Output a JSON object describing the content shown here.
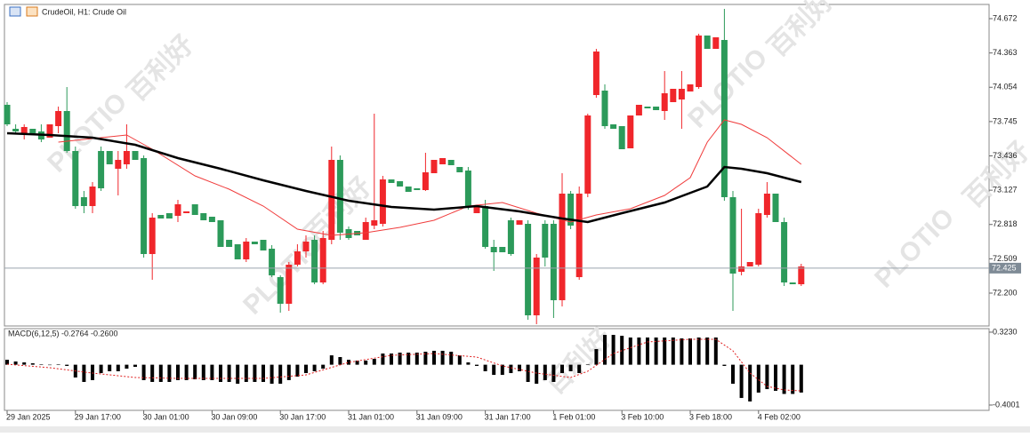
{
  "chart_data": [
    {
      "type": "candlestick",
      "title": "CrudeOil, H1: Crude Oil",
      "up_color": "#f0262b",
      "down_color": "#2c9a5a",
      "categories": [
        "29 Jan 2025",
        null,
        null,
        null,
        null,
        null,
        null,
        null,
        "29 Jan 17:00",
        null,
        null,
        null,
        null,
        null,
        null,
        null,
        "30 Jan 01:00",
        null,
        null,
        null,
        null,
        null,
        null,
        null,
        "30 Jan 09:00",
        null,
        null,
        null,
        null,
        null,
        null,
        null,
        "30 Jan 17:00",
        null,
        null,
        null,
        null,
        null,
        null,
        null,
        "31 Jan 01:00",
        null,
        null,
        null,
        null,
        null,
        null,
        null,
        "31 Jan 09:00",
        null,
        null,
        null,
        null,
        null,
        null,
        null,
        "31 Jan 17:00",
        null,
        null,
        null,
        null,
        null,
        null,
        null,
        "1 Feb 01:00",
        null,
        null,
        null,
        null,
        null,
        null,
        null,
        "3 Feb 10:00",
        null,
        null,
        null,
        null,
        null,
        null,
        null,
        "3 Feb 18:00",
        null,
        null,
        null,
        null,
        null,
        null,
        null,
        "4 Feb 02:00",
        null,
        null,
        null,
        null,
        null
      ],
      "ohlc": [
        [
          73.896,
          73.92,
          73.704,
          73.72
        ],
        [
          73.68,
          73.72,
          73.64,
          73.656
        ],
        [
          73.64,
          73.72,
          73.584,
          73.696
        ],
        [
          73.68,
          73.68,
          73.64,
          73.64
        ],
        [
          73.656,
          73.72,
          73.56,
          73.584
        ],
        [
          73.6,
          73.72,
          73.6,
          73.72
        ],
        [
          73.704,
          73.88,
          73.64,
          73.84
        ],
        [
          73.84,
          74.056,
          73.464,
          73.48
        ],
        [
          73.48,
          73.52,
          72.96,
          72.984
        ],
        [
          73.064,
          73.12,
          72.92,
          72.984
        ],
        [
          72.984,
          73.2,
          72.92,
          73.16
        ],
        [
          73.48,
          73.52,
          73.12,
          73.144
        ],
        [
          73.48,
          73.48,
          73.36,
          73.36
        ],
        [
          73.32,
          73.48,
          73.08,
          73.4
        ],
        [
          73.36,
          73.72,
          73.32,
          73.48
        ],
        [
          73.48,
          73.48,
          73.4,
          73.4
        ],
        [
          73.416,
          73.44,
          72.52,
          72.552
        ],
        [
          72.552,
          72.92,
          72.32,
          72.88
        ],
        [
          72.904,
          72.904,
          72.872,
          72.872
        ],
        [
          72.92,
          72.92,
          72.872,
          72.872
        ],
        [
          72.896,
          73.04,
          72.84,
          73.0
        ],
        [
          72.92,
          72.936,
          72.92,
          72.936
        ],
        [
          73.0,
          73.0,
          72.904,
          72.904
        ],
        [
          72.92,
          72.92,
          72.856,
          72.856
        ],
        [
          72.888,
          72.888,
          72.84,
          72.84
        ],
        [
          72.856,
          72.856,
          72.616,
          72.616
        ],
        [
          72.68,
          72.68,
          72.616,
          72.616
        ],
        [
          72.64,
          72.64,
          72.504,
          72.504
        ],
        [
          72.504,
          72.696,
          72.48,
          72.664
        ],
        [
          72.664,
          72.664,
          72.64,
          72.64
        ],
        [
          72.68,
          72.68,
          72.584,
          72.584
        ],
        [
          72.6,
          72.632,
          72.344,
          72.36
        ],
        [
          72.344,
          72.36,
          72.024,
          72.104
        ],
        [
          72.104,
          72.48,
          72.04,
          72.456
        ],
        [
          72.456,
          72.64,
          72.44,
          72.576
        ],
        [
          72.576,
          72.72,
          72.52,
          72.664
        ],
        [
          72.68,
          72.72,
          72.28,
          72.296
        ],
        [
          72.296,
          72.76,
          72.28,
          72.696
        ],
        [
          72.68,
          73.52,
          72.64,
          73.4
        ],
        [
          73.4,
          73.44,
          72.68,
          72.744
        ],
        [
          72.776,
          72.8,
          72.68,
          72.696
        ],
        [
          72.76,
          72.76,
          72.72,
          72.72
        ],
        [
          72.68,
          72.88,
          72.68,
          72.84
        ],
        [
          72.808,
          73.816,
          72.776,
          72.856
        ],
        [
          72.824,
          73.256,
          72.8,
          73.224
        ],
        [
          73.224,
          73.224,
          73.192,
          73.192
        ],
        [
          73.208,
          73.208,
          73.16,
          73.16
        ],
        [
          73.16,
          73.16,
          73.112,
          73.112
        ],
        [
          73.144,
          73.144,
          73.128,
          73.128
        ],
        [
          73.128,
          73.464,
          73.12,
          73.288
        ],
        [
          73.28,
          73.4,
          73.28,
          73.4
        ],
        [
          73.36,
          73.416,
          73.36,
          73.416
        ],
        [
          73.4,
          73.4,
          73.352,
          73.352
        ],
        [
          73.336,
          73.336,
          73.288,
          73.288
        ],
        [
          73.304,
          73.336,
          72.952,
          72.984
        ],
        [
          72.92,
          72.984,
          72.92,
          72.984
        ],
        [
          72.984,
          73.04,
          72.6,
          72.616
        ],
        [
          72.616,
          72.68,
          72.4,
          72.568
        ],
        [
          72.616,
          72.616,
          72.568,
          72.568
        ],
        [
          72.856,
          72.88,
          72.536,
          72.552
        ],
        [
          72.816,
          72.856,
          72.816,
          72.856
        ],
        [
          72.824,
          72.856,
          71.96,
          72.0
        ],
        [
          72.0,
          72.552,
          71.92,
          72.52
        ],
        [
          72.824,
          72.856,
          72.44,
          72.52
        ],
        [
          72.824,
          72.856,
          71.976,
          72.136
        ],
        [
          72.136,
          73.28,
          72.08,
          73.096
        ],
        [
          73.096,
          73.12,
          72.776,
          72.808
        ],
        [
          72.344,
          73.16,
          72.32,
          73.096
        ],
        [
          73.096,
          73.816,
          73.064,
          73.8
        ],
        [
          73.984,
          74.4,
          73.96,
          74.376
        ],
        [
          74.024,
          74.08,
          73.68,
          73.704
        ],
        [
          73.72,
          73.72,
          73.68,
          73.68
        ],
        [
          73.704,
          73.704,
          73.496,
          73.496
        ],
        [
          73.504,
          73.8,
          73.504,
          73.8
        ],
        [
          73.8,
          73.896,
          73.8,
          73.896
        ],
        [
          73.88,
          73.88,
          73.864,
          73.864
        ],
        [
          73.88,
          73.88,
          73.848,
          73.848
        ],
        [
          73.84,
          74.2,
          73.76,
          74.0
        ],
        [
          73.92,
          74.04,
          73.92,
          74.04
        ],
        [
          73.944,
          74.2,
          73.68,
          74.04
        ],
        [
          74.016,
          74.08,
          74.016,
          74.08
        ],
        [
          74.056,
          74.536,
          74.04,
          74.52
        ],
        [
          74.52,
          74.52,
          74.4,
          74.4
        ],
        [
          74.4,
          74.504,
          74.4,
          74.504
        ],
        [
          74.48,
          74.76,
          73.032,
          73.064
        ],
        [
          73.064,
          73.12,
          72.04,
          72.376
        ],
        [
          72.392,
          72.96,
          72.36,
          72.44
        ],
        [
          72.44,
          72.48,
          72.44,
          72.48
        ],
        [
          72.456,
          72.96,
          72.44,
          72.92
        ],
        [
          72.904,
          73.2,
          72.88,
          73.096
        ],
        [
          73.096,
          73.096,
          72.84,
          72.84
        ],
        [
          72.84,
          72.88,
          72.264,
          72.296
        ],
        [
          72.296,
          72.296,
          72.28,
          72.28
        ],
        [
          72.28,
          72.464,
          72.264,
          72.44
        ]
      ],
      "moving_averages": [
        {
          "color": "#f03c3c",
          "x": [
            6,
            10,
            14,
            17,
            22,
            26,
            30,
            34,
            38,
            42,
            46,
            50,
            54,
            58,
            62,
            66,
            69,
            73,
            77,
            80,
            82,
            84,
            86,
            89,
            93
          ],
          "values": [
            73.56,
            73.592,
            73.624,
            73.496,
            73.256,
            73.136,
            72.984,
            72.776,
            72.72,
            72.744,
            72.792,
            72.856,
            72.984,
            73.016,
            72.92,
            72.84,
            72.904,
            72.96,
            73.08,
            73.24,
            73.56,
            73.76,
            73.72,
            73.6,
            73.36
          ]
        },
        {
          "color": "#000000",
          "x": [
            0,
            5,
            10,
            15,
            20,
            25,
            30,
            35,
            40,
            45,
            50,
            55,
            60,
            65,
            68,
            72,
            77,
            82,
            84,
            86,
            89,
            93
          ],
          "values": [
            73.64,
            73.624,
            73.6,
            73.536,
            73.416,
            73.32,
            73.216,
            73.12,
            73.032,
            72.976,
            72.952,
            72.984,
            72.936,
            72.872,
            72.84,
            72.92,
            73.016,
            73.16,
            73.336,
            73.32,
            73.28,
            73.2
          ]
        }
      ],
      "current_price": 72.425,
      "ylim": [
        71.904,
        74.8
      ],
      "yticks": [
        74.672,
        74.363,
        74.054,
        73.745,
        73.436,
        73.127,
        72.818,
        72.509,
        {
          "value": 72.2,
          "label": "72.200"
        }
      ],
      "watermark": [
        "百利好",
        "PLOTIO"
      ]
    },
    {
      "type": "macd",
      "title": "MACD(6,12,5) -0.2764 -0.2600",
      "color": "#000000",
      "signal_color": "#e02020",
      "values": [
        0.049,
        0.032,
        0.023,
        0.014,
        0.005,
        -0.004,
        0.005,
        -0.012,
        -0.127,
        -0.171,
        -0.153,
        -0.083,
        -0.065,
        -0.065,
        -0.039,
        -0.021,
        -0.153,
        -0.171,
        -0.171,
        -0.171,
        -0.153,
        -0.153,
        -0.145,
        -0.153,
        -0.153,
        -0.171,
        -0.171,
        -0.189,
        -0.171,
        -0.171,
        -0.171,
        -0.189,
        -0.189,
        -0.153,
        -0.118,
        -0.083,
        -0.065,
        -0.039,
        0.093,
        0.076,
        0.049,
        0.041,
        0.041,
        0.058,
        0.111,
        0.111,
        0.12,
        0.12,
        0.12,
        0.129,
        0.138,
        0.138,
        0.129,
        0.093,
        0.023,
        -0.012,
        -0.065,
        -0.101,
        -0.101,
        -0.083,
        -0.065,
        -0.171,
        -0.189,
        -0.153,
        -0.171,
        -0.083,
        -0.065,
        -0.083,
        0.005,
        0.155,
        0.296,
        0.296,
        0.287,
        0.27,
        0.27,
        0.27,
        0.27,
        0.27,
        0.27,
        0.261,
        0.261,
        0.27,
        0.27,
        0.27,
        -0.012,
        -0.189,
        -0.33,
        -0.365,
        -0.277,
        -0.242,
        -0.259,
        -0.29,
        -0.29,
        -0.2764
      ],
      "signal": {
        "x": [
          0,
          5,
          10,
          15,
          20,
          25,
          30,
          35,
          40,
          45,
          50,
          55,
          58,
          62,
          66,
          68,
          71,
          75,
          80,
          83,
          85,
          87,
          89,
          91,
          93
        ],
        "values": [
          0.005,
          -0.03,
          -0.083,
          -0.127,
          -0.136,
          -0.136,
          -0.136,
          -0.101,
          0.023,
          0.093,
          0.111,
          0.076,
          -0.012,
          -0.083,
          -0.127,
          -0.065,
          0.111,
          0.226,
          0.252,
          0.252,
          0.138,
          -0.083,
          -0.215,
          -0.25,
          -0.26
        ]
      },
      "ylim": [
        -0.453,
        0.358
      ],
      "yticks": [
        {
          "value": 0.323,
          "label": "0.3230"
        },
        -0.4001
      ]
    }
  ]
}
